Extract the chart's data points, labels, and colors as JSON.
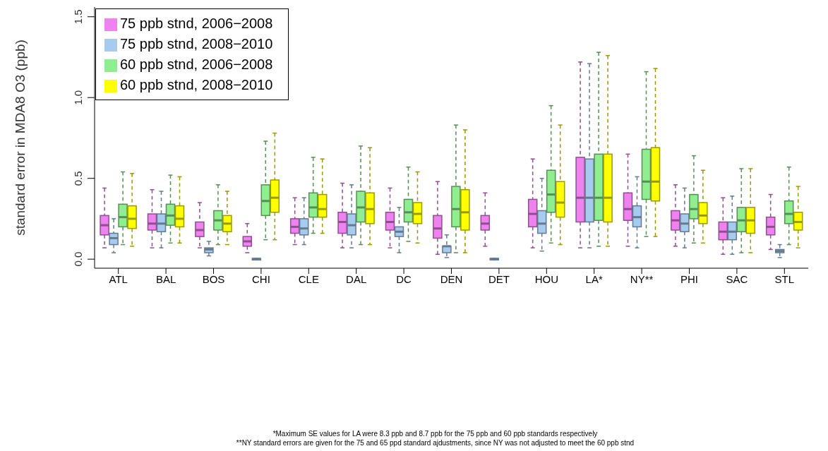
{
  "chart_data": {
    "type": "box",
    "ylabel": "standard error in MDA8 O3 (ppb)",
    "categories": [
      "ATL",
      "BAL",
      "BOS",
      "CHI",
      "CLE",
      "DAL",
      "DC",
      "DEN",
      "DET",
      "HOU",
      "LA*",
      "NY**",
      "PHI",
      "SAC",
      "STL"
    ],
    "ylim": [
      -0.056,
      1.56
    ],
    "yticks": [
      {
        "value": 0,
        "label": "0.0"
      },
      {
        "value": 0.5,
        "label": "0.5"
      },
      {
        "value": 1,
        "label": "1.0"
      },
      {
        "value": 1.5,
        "label": "1.5"
      }
    ],
    "legend": "top left",
    "series": [
      {
        "name": "75 ppb stnd, 2006−2008",
        "color": "#ee82ee",
        "boxes": [
          {
            "low": 0.07,
            "q1": 0.15,
            "median": 0.21,
            "q3": 0.27,
            "high": 0.44
          },
          {
            "low": 0.07,
            "q1": 0.18,
            "median": 0.22,
            "q3": 0.28,
            "high": 0.43
          },
          {
            "low": 0.07,
            "q1": 0.14,
            "median": 0.18,
            "q3": 0.23,
            "high": 0.35
          },
          {
            "low": 0.04,
            "q1": 0.08,
            "median": 0.11,
            "q3": 0.14,
            "high": 0.22
          },
          {
            "low": 0.09,
            "q1": 0.16,
            "median": 0.2,
            "q3": 0.25,
            "high": 0.38
          },
          {
            "low": 0.07,
            "q1": 0.16,
            "median": 0.23,
            "q3": 0.29,
            "high": 0.47
          },
          {
            "low": 0.07,
            "q1": 0.18,
            "median": 0.23,
            "q3": 0.29,
            "high": 0.44
          },
          {
            "low": 0.03,
            "q1": 0.13,
            "median": 0.19,
            "q3": 0.27,
            "high": 0.48
          },
          {
            "low": 0.08,
            "q1": 0.18,
            "median": 0.22,
            "q3": 0.27,
            "high": 0.41
          },
          {
            "low": 0.07,
            "q1": 0.2,
            "median": 0.28,
            "q3": 0.37,
            "high": 0.62
          },
          {
            "low": 0.07,
            "q1": 0.23,
            "median": 0.38,
            "q3": 0.63,
            "high": 1.22
          },
          {
            "low": 0.08,
            "q1": 0.24,
            "median": 0.31,
            "q3": 0.41,
            "high": 0.65
          },
          {
            "low": 0.08,
            "q1": 0.18,
            "median": 0.24,
            "q3": 0.3,
            "high": 0.46
          },
          {
            "low": 0.03,
            "q1": 0.12,
            "median": 0.17,
            "q3": 0.23,
            "high": 0.38
          },
          {
            "low": 0.06,
            "q1": 0.15,
            "median": 0.2,
            "q3": 0.26,
            "high": 0.4
          }
        ]
      },
      {
        "name": "75 ppb stnd, 2008−2010",
        "color": "#a6cbee",
        "boxes": [
          {
            "low": 0.04,
            "q1": 0.09,
            "median": 0.13,
            "q3": 0.16,
            "high": 0.25
          },
          {
            "low": 0.07,
            "q1": 0.17,
            "median": 0.22,
            "q3": 0.28,
            "high": 0.42
          },
          {
            "low": 0.02,
            "q1": 0.04,
            "median": 0.06,
            "q3": 0.07,
            "high": 0.11
          },
          {
            "low": -0.005,
            "q1": -0.005,
            "median": 0,
            "q3": 0.005,
            "high": 0.005
          },
          {
            "low": 0.09,
            "q1": 0.15,
            "median": 0.19,
            "q3": 0.25,
            "high": 0.38
          },
          {
            "low": 0.07,
            "q1": 0.15,
            "median": 0.21,
            "q3": 0.28,
            "high": 0.46
          },
          {
            "low": 0.04,
            "q1": 0.14,
            "median": 0.17,
            "q3": 0.2,
            "high": 0.32
          },
          {
            "low": 0.01,
            "q1": 0.04,
            "median": 0.08,
            "q3": 0.08,
            "high": 0.15
          },
          {
            "low": -0.005,
            "q1": -0.005,
            "median": 0,
            "q3": 0.005,
            "high": 0.005
          },
          {
            "low": 0.05,
            "q1": 0.16,
            "median": 0.22,
            "q3": 0.3,
            "high": 0.5
          },
          {
            "low": 0.07,
            "q1": 0.23,
            "median": 0.38,
            "q3": 0.62,
            "high": 1.21
          },
          {
            "low": 0.07,
            "q1": 0.2,
            "median": 0.26,
            "q3": 0.33,
            "high": 0.51
          },
          {
            "low": 0.07,
            "q1": 0.17,
            "median": 0.22,
            "q3": 0.28,
            "high": 0.44
          },
          {
            "low": 0.03,
            "q1": 0.12,
            "median": 0.17,
            "q3": 0.23,
            "high": 0.39
          },
          {
            "low": 0.01,
            "q1": 0.04,
            "median": 0.05,
            "q3": 0.06,
            "high": 0.09
          }
        ]
      },
      {
        "name": "60 ppb stnd, 2006−2008",
        "color": "#90ee90",
        "boxes": [
          {
            "low": 0.09,
            "q1": 0.2,
            "median": 0.26,
            "q3": 0.34,
            "high": 0.54
          },
          {
            "low": 0.1,
            "q1": 0.21,
            "median": 0.27,
            "q3": 0.34,
            "high": 0.52
          },
          {
            "low": 0.09,
            "q1": 0.18,
            "median": 0.24,
            "q3": 0.3,
            "high": 0.46
          },
          {
            "low": 0.12,
            "q1": 0.27,
            "median": 0.36,
            "q3": 0.46,
            "high": 0.73
          },
          {
            "low": 0.16,
            "q1": 0.26,
            "median": 0.32,
            "q3": 0.41,
            "high": 0.63
          },
          {
            "low": 0.09,
            "q1": 0.23,
            "median": 0.32,
            "q3": 0.42,
            "high": 0.7
          },
          {
            "low": 0.11,
            "q1": 0.23,
            "median": 0.29,
            "q3": 0.37,
            "high": 0.57
          },
          {
            "low": 0.04,
            "q1": 0.2,
            "median": 0.31,
            "q3": 0.45,
            "high": 0.83
          },
          null,
          {
            "low": 0.1,
            "q1": 0.29,
            "median": 0.4,
            "q3": 0.55,
            "high": 0.95
          },
          {
            "low": 0.08,
            "q1": 0.24,
            "median": 0.38,
            "q3": 0.65,
            "high": 1.28
          },
          {
            "low": 0.14,
            "q1": 0.37,
            "median": 0.48,
            "q3": 0.68,
            "high": 1.16
          },
          {
            "low": 0.1,
            "q1": 0.25,
            "median": 0.31,
            "q3": 0.4,
            "high": 0.64
          },
          {
            "low": 0.04,
            "q1": 0.17,
            "median": 0.24,
            "q3": 0.32,
            "high": 0.56
          },
          {
            "low": 0.09,
            "q1": 0.22,
            "median": 0.28,
            "q3": 0.36,
            "high": 0.57
          }
        ]
      },
      {
        "name": "60 ppb stnd, 2008−2010",
        "color": "#ffff00",
        "boxes": [
          {
            "low": 0.08,
            "q1": 0.19,
            "median": 0.25,
            "q3": 0.33,
            "high": 0.53
          },
          {
            "low": 0.1,
            "q1": 0.2,
            "median": 0.25,
            "q3": 0.33,
            "high": 0.51
          },
          {
            "low": 0.09,
            "q1": 0.17,
            "median": 0.22,
            "q3": 0.27,
            "high": 0.42
          },
          {
            "low": 0.12,
            "q1": 0.29,
            "median": 0.38,
            "q3": 0.49,
            "high": 0.78
          },
          {
            "low": 0.16,
            "q1": 0.26,
            "median": 0.31,
            "q3": 0.4,
            "high": 0.62
          },
          {
            "low": 0.09,
            "q1": 0.22,
            "median": 0.31,
            "q3": 0.41,
            "high": 0.69
          },
          {
            "low": 0.1,
            "q1": 0.22,
            "median": 0.28,
            "q3": 0.35,
            "high": 0.54
          },
          {
            "low": 0.04,
            "q1": 0.18,
            "median": 0.29,
            "q3": 0.43,
            "high": 0.8
          },
          null,
          {
            "low": 0.09,
            "q1": 0.26,
            "median": 0.35,
            "q3": 0.48,
            "high": 0.83
          },
          {
            "low": 0.08,
            "q1": 0.23,
            "median": 0.38,
            "q3": 0.65,
            "high": 1.26
          },
          {
            "low": 0.14,
            "q1": 0.36,
            "median": 0.48,
            "q3": 0.69,
            "high": 1.18
          },
          {
            "low": 0.1,
            "q1": 0.22,
            "median": 0.27,
            "q3": 0.35,
            "high": 0.55
          },
          {
            "low": 0.04,
            "q1": 0.16,
            "median": 0.24,
            "q3": 0.32,
            "high": 0.56
          },
          {
            "low": 0.07,
            "q1": 0.18,
            "median": 0.23,
            "q3": 0.29,
            "high": 0.45
          }
        ]
      }
    ],
    "annotations": [
      "*Maximum SE values for LA were 8.3 ppb and 8.7 ppb for the 75 ppb and 60 ppb standards respectively",
      "**NY standard errors are given for the 75 and 65 ppd standard ajdustments, since NY was not adjusted to meet the 60 ppb stnd"
    ]
  }
}
